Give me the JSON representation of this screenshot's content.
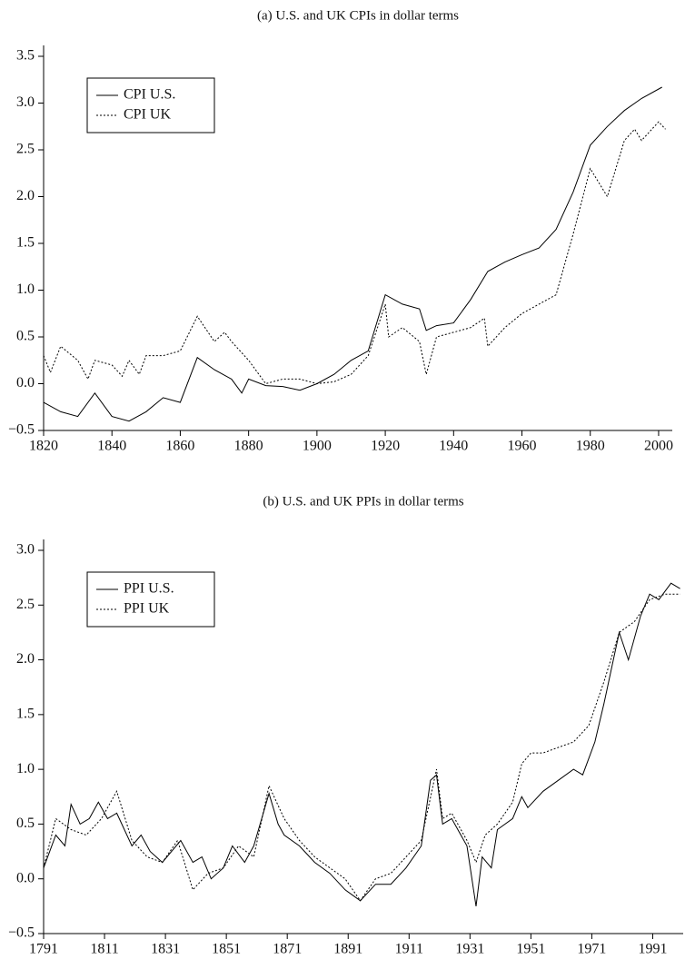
{
  "chart_data": [
    {
      "type": "line",
      "title": "(a)  U.S. and UK CPIs in dollar terms",
      "xlim": [
        1820,
        2004
      ],
      "xticks": [
        1820,
        1840,
        1860,
        1880,
        1900,
        1920,
        1940,
        1960,
        1980,
        2000
      ],
      "ylim": [
        -0.5,
        3.5
      ],
      "yticks": [
        {
          "value": -0.5,
          "label": "−0.5"
        },
        {
          "value": 0,
          "label": "0.0"
        },
        {
          "value": 0.5,
          "label": "0.5"
        },
        {
          "value": 1,
          "label": "1.0"
        },
        {
          "value": 1.5,
          "label": "1.5"
        },
        {
          "value": 2,
          "label": "2.0"
        },
        {
          "value": 2.5,
          "label": "2.5"
        },
        {
          "value": 3,
          "label": "3.0"
        },
        {
          "value": 3.5,
          "label": "3.5"
        }
      ],
      "legend": "upper left",
      "series": [
        {
          "name": "CPI U.S.",
          "color": "#000000",
          "style": "solid",
          "x": [
            1820,
            1825,
            1830,
            1835,
            1840,
            1845,
            1850,
            1855,
            1860,
            1865,
            1870,
            1875,
            1878,
            1880,
            1885,
            1890,
            1895,
            1900,
            1905,
            1910,
            1915,
            1920,
            1925,
            1930,
            1932,
            1935,
            1940,
            1945,
            1950,
            1955,
            1960,
            1965,
            1970,
            1975,
            1980,
            1985,
            1990,
            1995,
            2001
          ],
          "values": [
            -0.2,
            -0.3,
            -0.35,
            -0.1,
            -0.35,
            -0.4,
            -0.3,
            -0.15,
            -0.2,
            0.28,
            0.15,
            0.05,
            -0.1,
            0.05,
            -0.02,
            -0.03,
            -0.07,
            0.0,
            0.1,
            0.25,
            0.35,
            0.95,
            0.85,
            0.8,
            0.57,
            0.62,
            0.65,
            0.9,
            1.2,
            1.3,
            1.38,
            1.45,
            1.65,
            2.05,
            2.55,
            2.75,
            2.92,
            3.05,
            3.17
          ]
        },
        {
          "name": "CPI UK",
          "color": "#000000",
          "style": "dotted",
          "x": [
            1820,
            1822,
            1825,
            1830,
            1833,
            1835,
            1840,
            1843,
            1845,
            1848,
            1850,
            1855,
            1860,
            1865,
            1870,
            1873,
            1875,
            1880,
            1885,
            1890,
            1895,
            1900,
            1905,
            1910,
            1915,
            1920,
            1921,
            1925,
            1930,
            1932,
            1935,
            1940,
            1945,
            1949,
            1950,
            1955,
            1960,
            1965,
            1970,
            1975,
            1980,
            1985,
            1990,
            1993,
            1995,
            2000,
            2002
          ],
          "values": [
            0.3,
            0.12,
            0.4,
            0.25,
            0.05,
            0.25,
            0.2,
            0.08,
            0.25,
            0.1,
            0.3,
            0.3,
            0.35,
            0.72,
            0.45,
            0.55,
            0.45,
            0.25,
            0.0,
            0.05,
            0.05,
            0.0,
            0.02,
            0.1,
            0.3,
            0.85,
            0.5,
            0.6,
            0.45,
            0.1,
            0.5,
            0.55,
            0.6,
            0.7,
            0.4,
            0.6,
            0.75,
            0.85,
            0.95,
            1.6,
            2.3,
            2.0,
            2.6,
            2.72,
            2.6,
            2.8,
            2.72
          ]
        }
      ]
    },
    {
      "type": "line",
      "title": "(b)  U.S. and UK PPIs in dollar terms",
      "xlim": [
        1791,
        2001
      ],
      "xticks": [
        1791,
        1811,
        1831,
        1851,
        1871,
        1891,
        1911,
        1931,
        1951,
        1971,
        1991
      ],
      "ylim": [
        -0.5,
        3.0
      ],
      "yticks": [
        {
          "value": -0.5,
          "label": "−0.5"
        },
        {
          "value": 0,
          "label": "0.0"
        },
        {
          "value": 0.5,
          "label": "0.5"
        },
        {
          "value": 1,
          "label": "1.0"
        },
        {
          "value": 1.5,
          "label": "1.5"
        },
        {
          "value": 2,
          "label": "2.0"
        },
        {
          "value": 2.5,
          "label": "2.5"
        },
        {
          "value": 3,
          "label": "3.0"
        }
      ],
      "legend": "upper left",
      "series": [
        {
          "name": "PPI U.S.",
          "color": "#000000",
          "style": "solid",
          "x": [
            1791,
            1795,
            1798,
            1800,
            1803,
            1806,
            1809,
            1812,
            1815,
            1820,
            1823,
            1826,
            1830,
            1833,
            1836,
            1840,
            1843,
            1846,
            1850,
            1853,
            1857,
            1860,
            1865,
            1868,
            1870,
            1875,
            1880,
            1885,
            1890,
            1895,
            1900,
            1905,
            1910,
            1915,
            1918,
            1920,
            1922,
            1925,
            1930,
            1933,
            1935,
            1938,
            1940,
            1945,
            1948,
            1950,
            1955,
            1960,
            1965,
            1968,
            1972,
            1975,
            1980,
            1983,
            1987,
            1990,
            1993,
            1997,
            2000
          ],
          "values": [
            0.1,
            0.4,
            0.3,
            0.68,
            0.5,
            0.55,
            0.7,
            0.55,
            0.6,
            0.3,
            0.4,
            0.25,
            0.15,
            0.25,
            0.35,
            0.15,
            0.2,
            0.0,
            0.1,
            0.3,
            0.15,
            0.3,
            0.78,
            0.5,
            0.4,
            0.3,
            0.15,
            0.05,
            -0.1,
            -0.2,
            -0.05,
            -0.05,
            0.1,
            0.3,
            0.9,
            0.95,
            0.5,
            0.55,
            0.3,
            -0.25,
            0.2,
            0.1,
            0.45,
            0.55,
            0.75,
            0.65,
            0.8,
            0.9,
            1.0,
            0.95,
            1.25,
            1.6,
            2.25,
            2.0,
            2.4,
            2.6,
            2.55,
            2.7,
            2.65
          ]
        },
        {
          "name": "PPI UK",
          "color": "#000000",
          "style": "dotted",
          "x": [
            1791,
            1795,
            1800,
            1805,
            1810,
            1815,
            1820,
            1825,
            1830,
            1835,
            1840,
            1845,
            1850,
            1855,
            1860,
            1865,
            1870,
            1875,
            1880,
            1885,
            1890,
            1895,
            1900,
            1905,
            1910,
            1915,
            1920,
            1922,
            1925,
            1930,
            1933,
            1936,
            1940,
            1945,
            1948,
            1951,
            1955,
            1960,
            1965,
            1970,
            1975,
            1980,
            1985,
            1990,
            1995,
            2000
          ],
          "values": [
            0.1,
            0.55,
            0.45,
            0.4,
            0.55,
            0.8,
            0.35,
            0.2,
            0.15,
            0.35,
            -0.1,
            0.05,
            0.1,
            0.3,
            0.2,
            0.85,
            0.55,
            0.35,
            0.2,
            0.1,
            0.0,
            -0.2,
            0.0,
            0.05,
            0.2,
            0.35,
            1.0,
            0.55,
            0.6,
            0.35,
            0.15,
            0.4,
            0.5,
            0.7,
            1.05,
            1.15,
            1.15,
            1.2,
            1.25,
            1.4,
            1.8,
            2.25,
            2.35,
            2.55,
            2.6,
            2.6
          ]
        }
      ]
    }
  ]
}
